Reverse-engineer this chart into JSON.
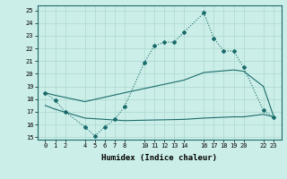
{
  "xlabel": "Humidex (Indice chaleur)",
  "bg_color": "#cceee8",
  "line_color": "#1a6b6b",
  "grid_color": "#aad8d0",
  "xticks": [
    0,
    1,
    2,
    4,
    5,
    6,
    7,
    8,
    10,
    11,
    12,
    13,
    14,
    16,
    17,
    18,
    19,
    20,
    22,
    23
  ],
  "yticks": [
    15,
    16,
    17,
    18,
    19,
    20,
    21,
    22,
    23,
    24,
    25
  ],
  "ylim": [
    14.8,
    25.4
  ],
  "xlim": [
    -0.8,
    23.8
  ],
  "line_max_x": [
    0,
    1,
    2,
    4,
    5,
    6,
    7,
    8,
    10,
    11,
    12,
    13,
    14,
    16,
    17,
    18,
    19,
    20,
    22,
    23
  ],
  "line_max_y": [
    18.5,
    17.9,
    17.0,
    15.8,
    15.1,
    15.8,
    16.4,
    17.4,
    20.9,
    22.2,
    22.5,
    22.5,
    23.3,
    24.8,
    22.8,
    21.8,
    21.8,
    20.5,
    17.1,
    16.6
  ],
  "line_mean_x": [
    0,
    1,
    4,
    8,
    14,
    16,
    19,
    20,
    22,
    23
  ],
  "line_mean_y": [
    18.5,
    18.3,
    17.8,
    18.5,
    19.5,
    20.1,
    20.3,
    20.2,
    19.0,
    16.7
  ],
  "line_min_x": [
    0,
    1,
    4,
    8,
    14,
    16,
    19,
    20,
    22,
    23
  ],
  "line_min_y": [
    17.5,
    17.2,
    16.5,
    16.3,
    16.4,
    16.5,
    16.6,
    16.6,
    16.8,
    16.6
  ]
}
